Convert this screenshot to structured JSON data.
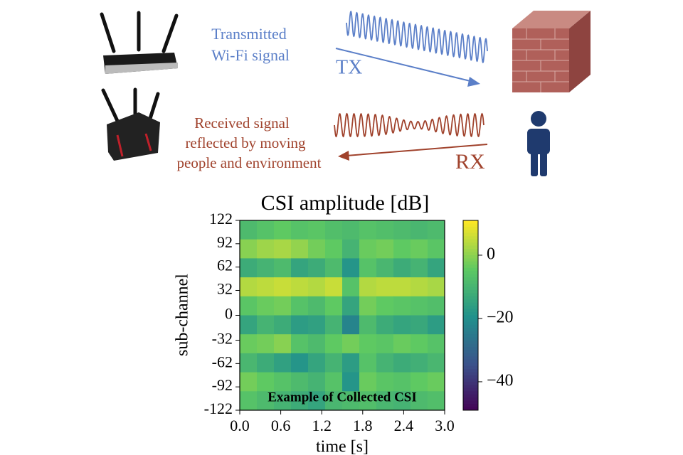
{
  "diagram": {
    "tx_label": [
      "Transmitted",
      "Wi-Fi signal"
    ],
    "tx": "TX",
    "rx_label": [
      "Received signal",
      "reflected by moving",
      "people and environment"
    ],
    "rx": "RX"
  },
  "chart_data": {
    "type": "heatmap",
    "title": "CSI amplitude [dB]",
    "x_label": "time [s]",
    "y_label": "sub-channel",
    "annotation": "Example of Collected CSI",
    "xlim": [
      0,
      3
    ],
    "xticks": [
      {
        "value": 0,
        "label": "0.0"
      },
      0.6,
      1.2,
      1.8,
      2.4,
      {
        "value": 3,
        "label": "3.0"
      }
    ],
    "ylim": [
      -122,
      122
    ],
    "yticks": [
      122,
      92,
      62,
      32,
      0,
      -32,
      -62,
      -92,
      -122
    ],
    "clim": [
      -49,
      11
    ],
    "cticks": [
      {
        "value": 0,
        "label": "0"
      },
      {
        "value": -20,
        "label": "−20"
      },
      {
        "value": -40,
        "label": "−40"
      }
    ],
    "colormap": "viridis",
    "z": [
      [
        -8,
        -6,
        -4,
        -6,
        -5,
        -7,
        -8,
        -6,
        -7,
        -8,
        -9,
        -8
      ],
      [
        0,
        2,
        3,
        1,
        -2,
        -4,
        -10,
        -3,
        -2,
        -4,
        -3,
        -5
      ],
      [
        -12,
        -10,
        -8,
        -14,
        -12,
        -8,
        -18,
        -6,
        -9,
        -12,
        -10,
        -14
      ],
      [
        4,
        5,
        6,
        5,
        4,
        6,
        -6,
        4,
        5,
        5,
        4,
        3
      ],
      [
        -5,
        -3,
        -2,
        -6,
        -8,
        -4,
        -14,
        -2,
        -4,
        -5,
        -6,
        -7
      ],
      [
        -14,
        -10,
        -12,
        -16,
        -15,
        -10,
        -22,
        -8,
        -12,
        -14,
        -13,
        -16
      ],
      [
        -3,
        -2,
        0,
        -6,
        -8,
        -4,
        -2,
        -4,
        -5,
        -3,
        -4,
        -6
      ],
      [
        -9,
        -12,
        -15,
        -18,
        -14,
        -10,
        -16,
        -6,
        -10,
        -12,
        -11,
        -9
      ],
      [
        -2,
        -4,
        -6,
        -8,
        -10,
        -6,
        -18,
        -3,
        -5,
        -6,
        -4,
        -3
      ],
      [
        -6,
        -8,
        -10,
        -12,
        -14,
        -9,
        -8,
        -7,
        -9,
        -10,
        -8,
        -7
      ]
    ]
  }
}
